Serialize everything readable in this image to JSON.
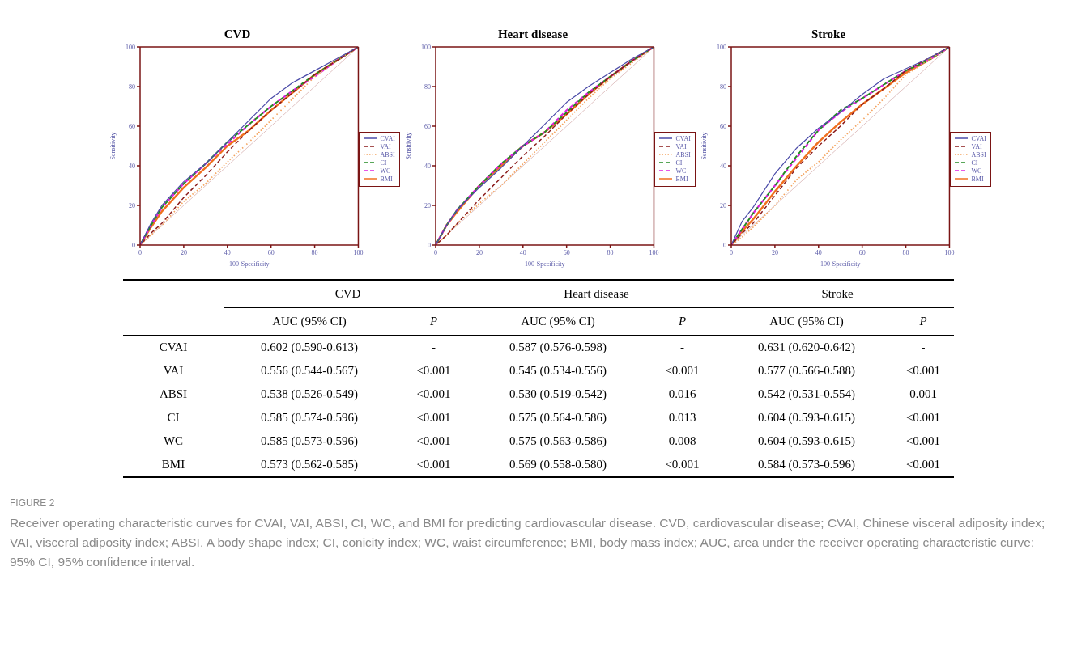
{
  "chart_data": [
    {
      "type": "line",
      "title": "CVD",
      "xlabel": "100-Specificity",
      "ylabel": "Sensitivity",
      "x": [
        0,
        5,
        10,
        20,
        30,
        40,
        50,
        60,
        70,
        80,
        90,
        100
      ],
      "xlim": [
        0,
        100
      ],
      "ylim": [
        0,
        100
      ],
      "xticks": [
        0,
        20,
        40,
        60,
        80,
        100
      ],
      "yticks": [
        0,
        20,
        40,
        60,
        80,
        100
      ],
      "grid": false,
      "legend": "right",
      "marker": "none",
      "series": [
        {
          "name": "CVAI",
          "color": "#4b4ba8",
          "line_style": "solid",
          "values": [
            0,
            11,
            20,
            32,
            41,
            52,
            63,
            74,
            82,
            88,
            94,
            100
          ]
        },
        {
          "name": "VAI",
          "color": "#8b1a1a",
          "line_style": "dashed",
          "values": [
            0,
            6,
            11,
            24,
            35,
            47,
            58,
            68,
            77,
            86,
            93,
            100
          ]
        },
        {
          "name": "ABSI",
          "color": "#f4a460",
          "line_style": "dotted",
          "values": [
            0,
            5,
            10,
            22,
            31,
            42,
            52,
            63,
            74,
            85,
            93,
            100
          ]
        },
        {
          "name": "CI",
          "color": "#228b22",
          "line_style": "dashed",
          "values": [
            0,
            10,
            19,
            31,
            41,
            52,
            61,
            70,
            78,
            86,
            93,
            100
          ]
        },
        {
          "name": "WC",
          "color": "#e020e0",
          "line_style": "dashed",
          "values": [
            0,
            10,
            19,
            31,
            41,
            51,
            61,
            70,
            78,
            85,
            93,
            100
          ]
        },
        {
          "name": "BMI",
          "color": "#f07020",
          "line_style": "solid",
          "values": [
            0,
            9,
            17,
            29,
            39,
            50,
            58,
            68,
            77,
            86,
            93,
            100
          ]
        },
        {
          "color": "#d8b4b4",
          "line_style": "solid",
          "values": [
            0,
            5,
            10,
            20,
            30,
            40,
            50,
            60,
            70,
            80,
            90,
            100
          ]
        }
      ]
    },
    {
      "type": "line",
      "title": "Heart disease",
      "xlabel": "100-Specificity",
      "ylabel": "Sensitivity",
      "x": [
        0,
        5,
        10,
        20,
        30,
        40,
        50,
        60,
        70,
        80,
        90,
        100
      ],
      "xlim": [
        0,
        100
      ],
      "ylim": [
        0,
        100
      ],
      "xticks": [
        0,
        20,
        40,
        60,
        80,
        100
      ],
      "yticks": [
        0,
        20,
        40,
        60,
        80,
        100
      ],
      "grid": false,
      "legend": "right",
      "marker": "none",
      "series": [
        {
          "name": "CVAI",
          "color": "#4b4ba8",
          "line_style": "solid",
          "values": [
            0,
            10,
            18,
            29,
            39,
            50,
            61,
            72,
            80,
            87,
            94,
            100
          ]
        },
        {
          "name": "VAI",
          "color": "#8b1a1a",
          "line_style": "dashed",
          "values": [
            0,
            5,
            11,
            23,
            34,
            45,
            55,
            66,
            76,
            85,
            93,
            100
          ]
        },
        {
          "name": "ABSI",
          "color": "#f4a460",
          "line_style": "dotted",
          "values": [
            0,
            5,
            11,
            21,
            30,
            41,
            52,
            63,
            74,
            84,
            92,
            100
          ]
        },
        {
          "name": "CI",
          "color": "#228b22",
          "line_style": "dashed",
          "values": [
            0,
            10,
            18,
            30,
            41,
            50,
            57,
            67,
            77,
            85,
            93,
            100
          ]
        },
        {
          "name": "WC",
          "color": "#e020e0",
          "line_style": "dashed",
          "values": [
            0,
            10,
            18,
            30,
            41,
            50,
            57,
            68,
            77,
            85,
            93,
            100
          ]
        },
        {
          "name": "BMI",
          "color": "#f07020",
          "line_style": "solid",
          "values": [
            0,
            10,
            17,
            30,
            40,
            50,
            57,
            66,
            76,
            85,
            93,
            100
          ]
        },
        {
          "color": "#d8b4b4",
          "line_style": "solid",
          "values": [
            0,
            5,
            10,
            20,
            30,
            40,
            50,
            60,
            70,
            80,
            90,
            100
          ]
        }
      ]
    },
    {
      "type": "line",
      "title": "Stroke",
      "xlabel": "100-Specificity",
      "ylabel": "Sensitivity",
      "x": [
        0,
        5,
        10,
        20,
        30,
        40,
        50,
        60,
        70,
        80,
        90,
        100
      ],
      "xlim": [
        0,
        100
      ],
      "ylim": [
        0,
        100
      ],
      "xticks": [
        0,
        20,
        40,
        60,
        80,
        100
      ],
      "yticks": [
        0,
        20,
        40,
        60,
        80,
        100
      ],
      "grid": false,
      "legend": "right",
      "marker": "none",
      "series": [
        {
          "name": "CVAI",
          "color": "#4b4ba8",
          "line_style": "solid",
          "values": [
            0,
            12,
            19,
            36,
            49,
            59,
            67,
            76,
            84,
            89,
            94,
            100
          ]
        },
        {
          "name": "VAI",
          "color": "#8b1a1a",
          "line_style": "dashed",
          "values": [
            0,
            6,
            11,
            25,
            39,
            50,
            60,
            71,
            79,
            88,
            94,
            100
          ]
        },
        {
          "name": "ABSI",
          "color": "#f4a460",
          "line_style": "dotted",
          "values": [
            0,
            4,
            9,
            20,
            33,
            42,
            53,
            63,
            74,
            86,
            93,
            100
          ]
        },
        {
          "name": "CI",
          "color": "#228b22",
          "line_style": "dashed",
          "values": [
            0,
            8,
            16,
            30,
            45,
            58,
            68,
            74,
            81,
            88,
            93,
            100
          ]
        },
        {
          "name": "WC",
          "color": "#e020e0",
          "line_style": "dashed",
          "values": [
            0,
            8,
            16,
            30,
            44,
            58,
            67,
            74,
            81,
            88,
            93,
            100
          ]
        },
        {
          "name": "BMI",
          "color": "#f07020",
          "line_style": "solid",
          "values": [
            0,
            7,
            13,
            27,
            40,
            52,
            62,
            71,
            79,
            87,
            93,
            100
          ]
        },
        {
          "color": "#d8b4b4",
          "line_style": "solid",
          "values": [
            0,
            5,
            10,
            20,
            30,
            40,
            50,
            60,
            70,
            80,
            90,
            100
          ]
        }
      ]
    },
    {
      "type": "other",
      "annotations": [
        "CVD",
        "Heart disease",
        "Stroke",
        "AUC (95% CI)",
        "P",
        "AUC (95% CI)",
        "P",
        "AUC (95% CI)",
        "P",
        "CVAI",
        "0.602 (0.590-0.613)",
        "-",
        "0.587 (0.576-0.598)",
        "-",
        "0.631 (0.620-0.642)",
        "-",
        "VAI",
        "0.556 (0.544-0.567)",
        "<0.001",
        "0.545 (0.534-0.556)",
        "<0.001",
        "0.577 (0.566-0.588)",
        "<0.001",
        "ABSI",
        "0.538 (0.526-0.549)",
        "<0.001",
        "0.530 (0.519-0.542)",
        "0.016",
        "0.542 (0.531-0.554)",
        "0.001",
        "CI",
        "0.585 (0.574-0.596)",
        "<0.001",
        "0.575 (0.564-0.586)",
        "0.013",
        "0.604 (0.593-0.615)",
        "<0.001",
        "WC",
        "0.585 (0.573-0.596)",
        "<0.001",
        "0.575 (0.563-0.586)",
        "0.008",
        "0.604 (0.593-0.615)",
        "<0.001",
        "BMI",
        "0.573 (0.562-0.585)",
        "<0.001",
        "0.569 (0.558-0.580)",
        "<0.001",
        "0.584 (0.573-0.596)",
        "<0.001",
        "FIGURE 2",
        "Receiver operating characteristic curves for CVAI, VAI, ABSI, CI, WC, and BMI for predicting cardiovascular disease. CVD, cardiovascular disease; CVAI, Chinese visceral adiposity index; VAI, visceral adiposity index; ABSI, A body shape index; CI, conicity index; WC, waist circumference; BMI, body mass index; AUC, area under the receiver operating characteristic curve; 95% CI, 95% confidence interval."
      ]
    }
  ]
}
